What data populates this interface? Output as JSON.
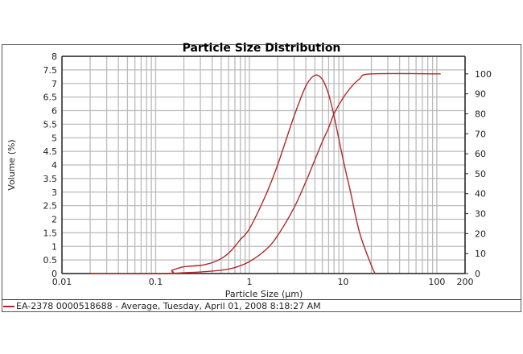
{
  "chart_data": {
    "type": "line",
    "title": "Particle Size Distribution",
    "xlabel": "Particle Size (µm)",
    "ylabel": "Volume (%)",
    "x_scale": "log",
    "xlim": [
      0.01,
      200
    ],
    "ylim": [
      0,
      8
    ],
    "y2lim": [
      0,
      108.8
    ],
    "x_ticks": [
      "0.01",
      "0.1",
      "1",
      "10",
      "100",
      "200"
    ],
    "y_ticks": [
      "0",
      "0.5",
      "1",
      "1.5",
      "2",
      "2.5",
      "3",
      "3.5",
      "4",
      "4.5",
      "5",
      "5.5",
      "6",
      "6.5",
      "7",
      "7.5",
      "8"
    ],
    "y2_ticks": [
      "0",
      "10",
      "20",
      "30",
      "40",
      "50",
      "60",
      "70",
      "80",
      "90",
      "100"
    ],
    "grid": true,
    "legend_position": "bottom",
    "series": [
      {
        "name": "EA-2378 0000518688 - Average, Tuesday, April 01, 2008 8:18:27 AM",
        "color": "#b02a2a",
        "axis": "left",
        "x": [
          0.02,
          0.13,
          0.15,
          0.2,
          0.3,
          0.4,
          0.5,
          0.6,
          0.7,
          0.8,
          1,
          1.5,
          2,
          3,
          4,
          5,
          6,
          7,
          8,
          10,
          12,
          15,
          20,
          22
        ],
        "y": [
          0,
          0,
          0.12,
          0.25,
          0.3,
          0.4,
          0.55,
          0.75,
          1.0,
          1.25,
          1.65,
          2.9,
          4.0,
          5.8,
          6.9,
          7.3,
          7.15,
          6.6,
          5.8,
          4.2,
          3.0,
          1.5,
          0.3,
          0
        ]
      },
      {
        "color": "#b02a2a",
        "axis": "right",
        "x": [
          0.13,
          0.2,
          0.3,
          0.5,
          0.7,
          1,
          1.5,
          2,
          3,
          4,
          5,
          6,
          7,
          8,
          10,
          12,
          15,
          20,
          110
        ],
        "y": [
          0,
          0.4,
          0.8,
          1.7,
          3.0,
          6,
          12,
          19,
          33,
          46,
          57,
          66,
          73,
          80,
          88,
          93,
          97.5,
          100,
          100
        ]
      }
    ]
  }
}
